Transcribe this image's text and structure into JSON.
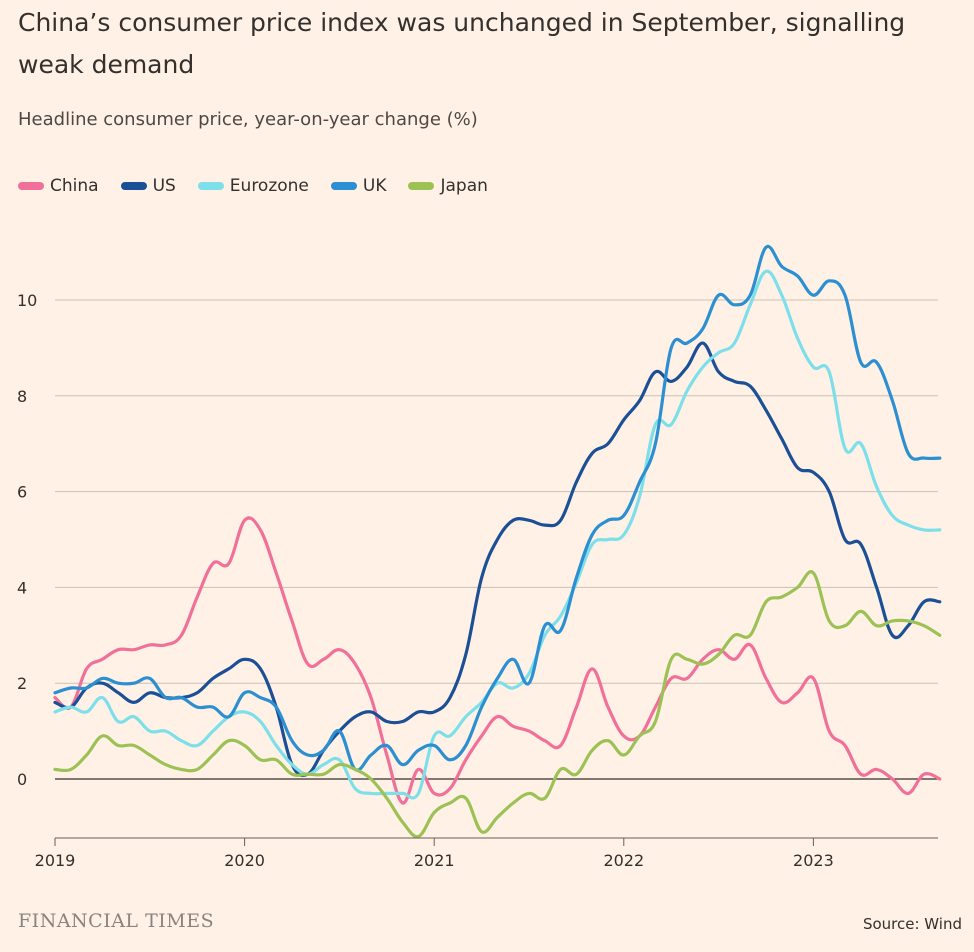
{
  "title": "China’s consumer price index was unchanged in September, signalling weak demand",
  "subtitle": "Headline consumer price, year-on-year change (%)",
  "footer": {
    "logo": "FINANCIAL TIMES",
    "source": "Source: Wind"
  },
  "legend": [
    {
      "name": "China",
      "color": "#f0709a"
    },
    {
      "name": "US",
      "color": "#1b4f96"
    },
    {
      "name": "Eurozone",
      "color": "#7ddfea"
    },
    {
      "name": "UK",
      "color": "#2b8fd1"
    },
    {
      "name": "Japan",
      "color": "#9cc256"
    }
  ],
  "chart_data": {
    "type": "line",
    "title": "China’s consumer price index was unchanged in September, signalling weak demand",
    "ylabel": "Headline consumer price, year-on-year change (%)",
    "xlabel": "",
    "x_start": "2019-01",
    "x_end": "2023-09",
    "xlim": [
      2019.0,
      2023.67
    ],
    "ylim": [
      -1.2,
      11.2
    ],
    "xticks": [
      {
        "value": 2019,
        "label": "2019"
      },
      {
        "value": 2020,
        "label": "2020"
      },
      {
        "value": 2021,
        "label": "2021"
      },
      {
        "value": 2022,
        "label": "2022"
      },
      {
        "value": 2023,
        "label": "2023"
      }
    ],
    "yticks": [
      {
        "value": 0,
        "label": "0"
      },
      {
        "value": 2,
        "label": "2"
      },
      {
        "value": 4,
        "label": "4"
      },
      {
        "value": 6,
        "label": "6"
      },
      {
        "value": 8,
        "label": "8"
      },
      {
        "value": 10,
        "label": "10"
      }
    ],
    "grid": true,
    "legend_position": "top-left",
    "series": [
      {
        "name": "China",
        "color": "#f0709a",
        "values": [
          1.7,
          1.5,
          2.3,
          2.5,
          2.7,
          2.7,
          2.8,
          2.8,
          3.0,
          3.8,
          4.5,
          4.5,
          5.4,
          5.2,
          4.3,
          3.3,
          2.4,
          2.5,
          2.7,
          2.4,
          1.7,
          0.5,
          -0.5,
          0.2,
          -0.3,
          -0.2,
          0.4,
          0.9,
          1.3,
          1.1,
          1.0,
          0.8,
          0.7,
          1.5,
          2.3,
          1.5,
          0.9,
          0.9,
          1.5,
          2.1,
          2.1,
          2.5,
          2.7,
          2.5,
          2.8,
          2.1,
          1.6,
          1.8,
          2.1,
          1.0,
          0.7,
          0.1,
          0.2,
          0.0,
          -0.3,
          0.1,
          0.0
        ]
      },
      {
        "name": "US",
        "color": "#1b4f96",
        "values": [
          1.6,
          1.5,
          1.9,
          2.0,
          1.8,
          1.6,
          1.8,
          1.7,
          1.7,
          1.8,
          2.1,
          2.3,
          2.5,
          2.3,
          1.5,
          0.3,
          0.1,
          0.6,
          1.0,
          1.3,
          1.4,
          1.2,
          1.2,
          1.4,
          1.4,
          1.7,
          2.6,
          4.2,
          5.0,
          5.4,
          5.4,
          5.3,
          5.4,
          6.2,
          6.8,
          7.0,
          7.5,
          7.9,
          8.5,
          8.3,
          8.6,
          9.1,
          8.5,
          8.3,
          8.2,
          7.7,
          7.1,
          6.5,
          6.4,
          6.0,
          5.0,
          4.9,
          4.0,
          3.0,
          3.2,
          3.7,
          3.7
        ]
      },
      {
        "name": "Eurozone",
        "color": "#7ddfea",
        "values": [
          1.4,
          1.5,
          1.4,
          1.7,
          1.2,
          1.3,
          1.0,
          1.0,
          0.8,
          0.7,
          1.0,
          1.3,
          1.4,
          1.2,
          0.7,
          0.3,
          0.1,
          0.3,
          0.4,
          -0.2,
          -0.3,
          -0.3,
          -0.3,
          -0.3,
          0.9,
          0.9,
          1.3,
          1.6,
          2.0,
          1.9,
          2.2,
          3.0,
          3.4,
          4.1,
          4.9,
          5.0,
          5.1,
          5.9,
          7.4,
          7.4,
          8.1,
          8.6,
          8.9,
          9.1,
          9.9,
          10.6,
          10.1,
          9.2,
          8.6,
          8.5,
          6.9,
          7.0,
          6.1,
          5.5,
          5.3,
          5.2,
          5.2
        ]
      },
      {
        "name": "UK",
        "color": "#2b8fd1",
        "values": [
          1.8,
          1.9,
          1.9,
          2.1,
          2.0,
          2.0,
          2.1,
          1.7,
          1.7,
          1.5,
          1.5,
          1.3,
          1.8,
          1.7,
          1.5,
          0.8,
          0.5,
          0.6,
          1.0,
          0.2,
          0.5,
          0.7,
          0.3,
          0.6,
          0.7,
          0.4,
          0.7,
          1.5,
          2.1,
          2.5,
          2.0,
          3.2,
          3.1,
          4.2,
          5.1,
          5.4,
          5.5,
          6.2,
          7.0,
          9.0,
          9.1,
          9.4,
          10.1,
          9.9,
          10.1,
          11.1,
          10.7,
          10.5,
          10.1,
          10.4,
          10.1,
          8.7,
          8.7,
          7.9,
          6.8,
          6.7,
          6.7
        ]
      },
      {
        "name": "Japan",
        "color": "#9cc256",
        "values": [
          0.2,
          0.2,
          0.5,
          0.9,
          0.7,
          0.7,
          0.5,
          0.3,
          0.2,
          0.2,
          0.5,
          0.8,
          0.7,
          0.4,
          0.4,
          0.1,
          0.1,
          0.1,
          0.3,
          0.2,
          0.0,
          -0.4,
          -0.9,
          -1.2,
          -0.7,
          -0.5,
          -0.4,
          -1.1,
          -0.8,
          -0.5,
          -0.3,
          -0.4,
          0.2,
          0.1,
          0.6,
          0.8,
          0.5,
          0.9,
          1.2,
          2.5,
          2.5,
          2.4,
          2.6,
          3.0,
          3.0,
          3.7,
          3.8,
          4.0,
          4.3,
          3.3,
          3.2,
          3.5,
          3.2,
          3.3,
          3.3,
          3.2,
          3.0
        ]
      }
    ]
  }
}
